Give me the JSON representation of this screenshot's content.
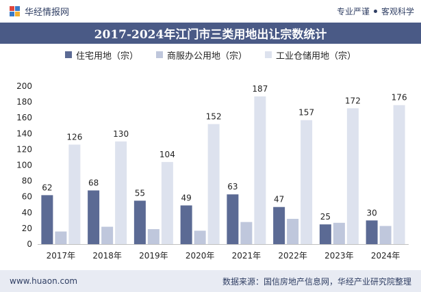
{
  "header": {
    "brand": "华经情报网",
    "slogan_left": "专业严谨",
    "slogan_right": "客观科学"
  },
  "footer": {
    "url": "www.huaon.com",
    "source": "数据来源：国信房地产信息网，华经产业研究院整理"
  },
  "colors": {
    "series1": "#5b6a94",
    "series2": "#bfc7dc",
    "series3": "#dde2ee",
    "title_bg": "#4a5a86"
  },
  "chart_data": {
    "type": "bar",
    "title": "2017-2024年江门市三类用地出让宗数统计",
    "categories": [
      "2017年",
      "2018年",
      "2019年",
      "2020年",
      "2021年",
      "2022年",
      "2023年",
      "2024年"
    ],
    "series": [
      {
        "name": "住宅用地（宗）",
        "values": [
          62,
          68,
          55,
          49,
          63,
          47,
          25,
          30
        ],
        "labeled": true
      },
      {
        "name": "商服办公用地（宗）",
        "values": [
          16,
          22,
          19,
          17,
          28,
          32,
          27,
          23
        ],
        "labeled": false
      },
      {
        "name": "工业仓储用地（宗）",
        "values": [
          126,
          130,
          104,
          152,
          187,
          157,
          172,
          176
        ],
        "labeled": true
      }
    ],
    "ylim": [
      0,
      200
    ],
    "yticks": [
      0,
      20,
      40,
      60,
      80,
      100,
      120,
      140,
      160,
      180,
      200
    ],
    "grid": false,
    "legend": "top"
  }
}
